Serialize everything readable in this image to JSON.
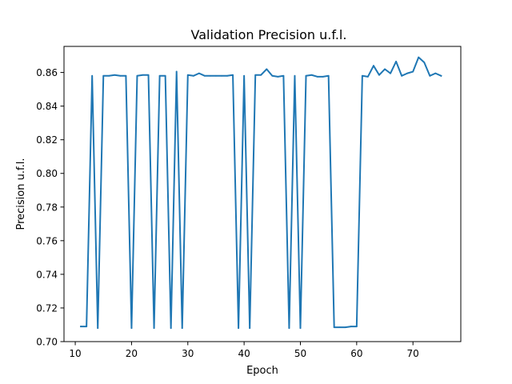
{
  "chart_data": {
    "type": "line",
    "title": "Validation Precision u.f.l.",
    "xlabel": "Epoch",
    "ylabel": "Precision u.f.l.",
    "xlim": [
      8,
      78.5
    ],
    "ylim": [
      0.7,
      0.8755
    ],
    "xticks": [
      10,
      20,
      30,
      40,
      50,
      60,
      70
    ],
    "yticks": [
      0.7,
      0.72,
      0.74,
      0.76,
      0.78,
      0.8,
      0.82,
      0.84,
      0.86
    ],
    "ytick_labels": [
      "0.70",
      "0.72",
      "0.74",
      "0.76",
      "0.78",
      "0.80",
      "0.82",
      "0.84",
      "0.86"
    ],
    "grid": false,
    "series": [
      {
        "color": "#1f77b4",
        "x": [
          11,
          12,
          13,
          14,
          15,
          16,
          17,
          18,
          19,
          20,
          21,
          22,
          23,
          24,
          25,
          26,
          27,
          28,
          29,
          30,
          31,
          32,
          33,
          34,
          35,
          36,
          37,
          38,
          39,
          40,
          41,
          42,
          43,
          44,
          45,
          46,
          47,
          48,
          49,
          50,
          51,
          52,
          53,
          54,
          55,
          56,
          57,
          58,
          59,
          60,
          61,
          62,
          63,
          64,
          65,
          66,
          67,
          68,
          69,
          70,
          71,
          72,
          73,
          74,
          75
        ],
        "values": [
          0.709,
          0.709,
          0.858,
          0.708,
          0.858,
          0.858,
          0.8585,
          0.858,
          0.858,
          0.708,
          0.858,
          0.8585,
          0.8585,
          0.708,
          0.858,
          0.858,
          0.708,
          0.8605,
          0.708,
          0.8585,
          0.858,
          0.8595,
          0.858,
          0.858,
          0.858,
          0.858,
          0.858,
          0.8585,
          0.708,
          0.858,
          0.708,
          0.8585,
          0.8585,
          0.862,
          0.858,
          0.8575,
          0.858,
          0.708,
          0.858,
          0.708,
          0.858,
          0.8585,
          0.8575,
          0.8575,
          0.858,
          0.7085,
          0.7085,
          0.7085,
          0.709,
          0.709,
          0.858,
          0.8575,
          0.864,
          0.8585,
          0.862,
          0.8595,
          0.8665,
          0.858,
          0.8595,
          0.8605,
          0.869,
          0.866,
          0.858,
          0.8595,
          0.858
        ]
      }
    ]
  }
}
